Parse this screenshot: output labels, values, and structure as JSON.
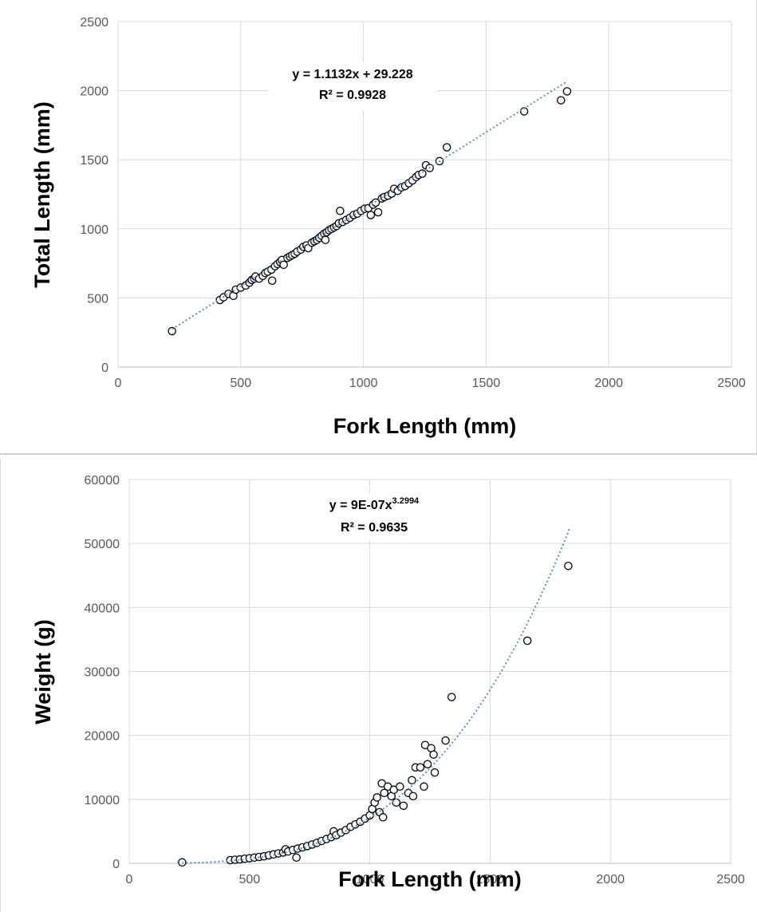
{
  "chart_data": [
    {
      "type": "scatter",
      "xlabel": "Fork Length (mm)",
      "ylabel": "Total Length (mm)",
      "xlim": [
        0,
        2500
      ],
      "ylim": [
        0,
        2500
      ],
      "xticks": [
        "0",
        "500",
        "1000",
        "1500",
        "2000",
        "2500"
      ],
      "yticks": [
        "0",
        "500",
        "1000",
        "1500",
        "2000",
        "2500"
      ],
      "grid": true,
      "trendline": {
        "type": "linear",
        "slope": 1.1132,
        "intercept": 29.228,
        "x_range": [
          220,
          1830
        ],
        "style": "dotted",
        "color": "#5b8fc9"
      },
      "annotation": {
        "equation": "y = 1.1132x + 29.228",
        "r2": "R² = 0.9928"
      },
      "points": [
        [
          220,
          260
        ],
        [
          415,
          485
        ],
        [
          430,
          505
        ],
        [
          450,
          530
        ],
        [
          470,
          515
        ],
        [
          480,
          560
        ],
        [
          500,
          575
        ],
        [
          520,
          590
        ],
        [
          535,
          610
        ],
        [
          545,
          630
        ],
        [
          555,
          640
        ],
        [
          560,
          655
        ],
        [
          575,
          640
        ],
        [
          590,
          660
        ],
        [
          600,
          680
        ],
        [
          610,
          690
        ],
        [
          625,
          705
        ],
        [
          628,
          625
        ],
        [
          640,
          730
        ],
        [
          650,
          745
        ],
        [
          660,
          760
        ],
        [
          668,
          775
        ],
        [
          675,
          740
        ],
        [
          690,
          790
        ],
        [
          700,
          800
        ],
        [
          710,
          810
        ],
        [
          720,
          820
        ],
        [
          730,
          835
        ],
        [
          745,
          850
        ],
        [
          755,
          870
        ],
        [
          768,
          880
        ],
        [
          775,
          860
        ],
        [
          790,
          900
        ],
        [
          800,
          910
        ],
        [
          810,
          920
        ],
        [
          820,
          935
        ],
        [
          830,
          950
        ],
        [
          840,
          965
        ],
        [
          845,
          920
        ],
        [
          850,
          975
        ],
        [
          860,
          990
        ],
        [
          870,
          1000
        ],
        [
          880,
          1010
        ],
        [
          890,
          1020
        ],
        [
          900,
          1040
        ],
        [
          905,
          1130
        ],
        [
          915,
          1050
        ],
        [
          930,
          1065
        ],
        [
          945,
          1080
        ],
        [
          960,
          1100
        ],
        [
          975,
          1110
        ],
        [
          990,
          1130
        ],
        [
          1005,
          1145
        ],
        [
          1020,
          1150
        ],
        [
          1030,
          1100
        ],
        [
          1040,
          1175
        ],
        [
          1050,
          1190
        ],
        [
          1060,
          1120
        ],
        [
          1075,
          1220
        ],
        [
          1085,
          1230
        ],
        [
          1100,
          1240
        ],
        [
          1115,
          1255
        ],
        [
          1125,
          1290
        ],
        [
          1140,
          1275
        ],
        [
          1155,
          1300
        ],
        [
          1170,
          1310
        ],
        [
          1185,
          1330
        ],
        [
          1200,
          1350
        ],
        [
          1215,
          1375
        ],
        [
          1225,
          1390
        ],
        [
          1240,
          1400
        ],
        [
          1255,
          1460
        ],
        [
          1270,
          1440
        ],
        [
          1310,
          1490
        ],
        [
          1340,
          1590
        ],
        [
          1655,
          1850
        ],
        [
          1805,
          1930
        ],
        [
          1830,
          1995
        ]
      ]
    },
    {
      "type": "scatter",
      "xlabel": "Fork Length (mm)",
      "ylabel": "Weight (g)",
      "xlim": [
        0,
        2500
      ],
      "ylim": [
        0,
        60000
      ],
      "xticks": [
        "0",
        "500",
        "1000",
        "1500",
        "2000",
        "2500"
      ],
      "yticks": [
        "0",
        "10000",
        "20000",
        "30000",
        "40000",
        "50000",
        "60000"
      ],
      "grid": true,
      "trendline": {
        "type": "power",
        "coefficient": 9e-07,
        "exponent": 3.2994,
        "x_range": [
          220,
          1830
        ],
        "style": "dotted",
        "color": "#5b8fc9"
      },
      "annotation": {
        "equation_base": "y = 9E-07x",
        "equation_exp": "3.2994",
        "r2": "R² = 0.9635"
      },
      "points": [
        [
          220,
          150
        ],
        [
          420,
          500
        ],
        [
          440,
          560
        ],
        [
          460,
          620
        ],
        [
          480,
          720
        ],
        [
          500,
          800
        ],
        [
          520,
          900
        ],
        [
          540,
          1000
        ],
        [
          560,
          1100
        ],
        [
          580,
          1250
        ],
        [
          600,
          1400
        ],
        [
          620,
          1550
        ],
        [
          640,
          1700
        ],
        [
          650,
          2200
        ],
        [
          660,
          1850
        ],
        [
          680,
          2100
        ],
        [
          695,
          900
        ],
        [
          700,
          2300
        ],
        [
          720,
          2500
        ],
        [
          740,
          2700
        ],
        [
          760,
          2950
        ],
        [
          780,
          3200
        ],
        [
          800,
          3500
        ],
        [
          820,
          3800
        ],
        [
          840,
          4100
        ],
        [
          850,
          5000
        ],
        [
          860,
          4400
        ],
        [
          880,
          4800
        ],
        [
          900,
          5200
        ],
        [
          920,
          5700
        ],
        [
          940,
          6100
        ],
        [
          960,
          6500
        ],
        [
          980,
          7000
        ],
        [
          1000,
          7500
        ],
        [
          1010,
          8500
        ],
        [
          1020,
          9500
        ],
        [
          1030,
          10300
        ],
        [
          1040,
          8000
        ],
        [
          1050,
          12500
        ],
        [
          1055,
          7200
        ],
        [
          1060,
          11000
        ],
        [
          1075,
          12000
        ],
        [
          1090,
          10500
        ],
        [
          1100,
          11500
        ],
        [
          1110,
          9500
        ],
        [
          1125,
          12000
        ],
        [
          1140,
          9000
        ],
        [
          1160,
          11000
        ],
        [
          1175,
          13000
        ],
        [
          1180,
          10500
        ],
        [
          1190,
          15000
        ],
        [
          1210,
          15000
        ],
        [
          1225,
          12000
        ],
        [
          1230,
          18500
        ],
        [
          1240,
          15500
        ],
        [
          1255,
          18000
        ],
        [
          1265,
          17000
        ],
        [
          1270,
          14200
        ],
        [
          1315,
          19200
        ],
        [
          1340,
          26000
        ],
        [
          1655,
          34800
        ],
        [
          1825,
          46500
        ]
      ]
    }
  ]
}
